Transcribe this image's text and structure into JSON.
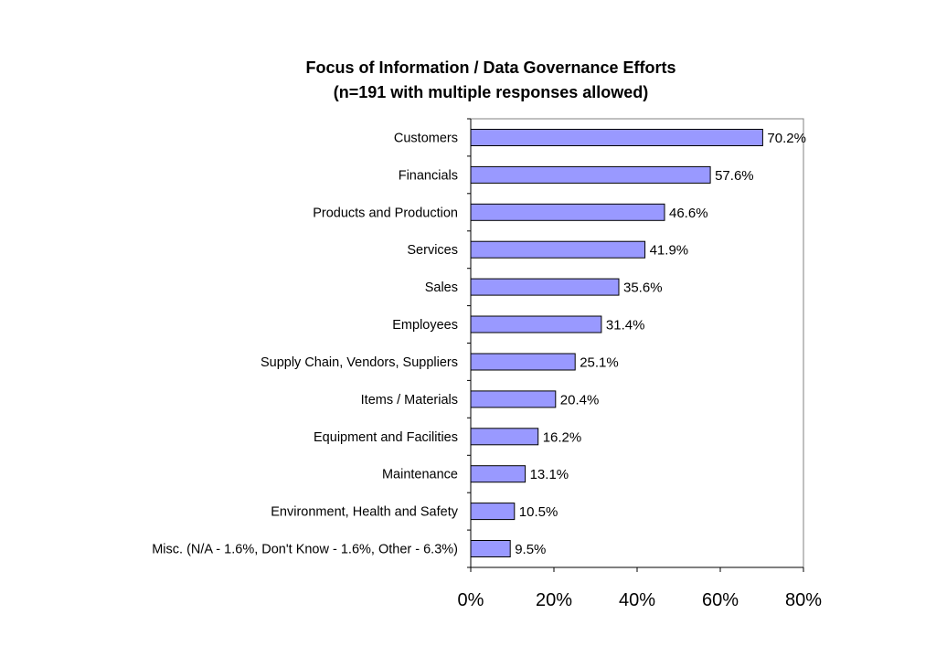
{
  "chart_data": {
    "type": "bar",
    "orientation": "horizontal",
    "title": "Focus of Information / Data Governance Efforts",
    "subtitle": "(n=191 with multiple responses allowed)",
    "xlabel": "",
    "ylabel": "",
    "categories": [
      "Customers",
      "Financials",
      "Products and Production",
      "Services",
      "Sales",
      "Employees",
      "Supply Chain, Vendors, Suppliers",
      "Items / Materials",
      "Equipment and Facilities",
      "Maintenance",
      "Environment, Health and Safety",
      "Misc. (N/A - 1.6%, Don't Know - 1.6%, Other - 6.3%)"
    ],
    "values": [
      70.2,
      57.6,
      46.6,
      41.9,
      35.6,
      31.4,
      25.1,
      20.4,
      16.2,
      13.1,
      10.5,
      9.5
    ],
    "value_labels": [
      "70.2%",
      "57.6%",
      "46.6%",
      "41.9%",
      "35.6%",
      "31.4%",
      "25.1%",
      "20.4%",
      "16.2%",
      "13.1%",
      "10.5%",
      "9.5%"
    ],
    "xlim": [
      0,
      80
    ],
    "x_ticks": [
      0,
      20,
      40,
      60,
      80
    ],
    "x_tick_labels": [
      "0%",
      "20%",
      "40%",
      "60%",
      "80%"
    ],
    "grid": false,
    "legend": "none",
    "bar_color": "#9999ff"
  }
}
